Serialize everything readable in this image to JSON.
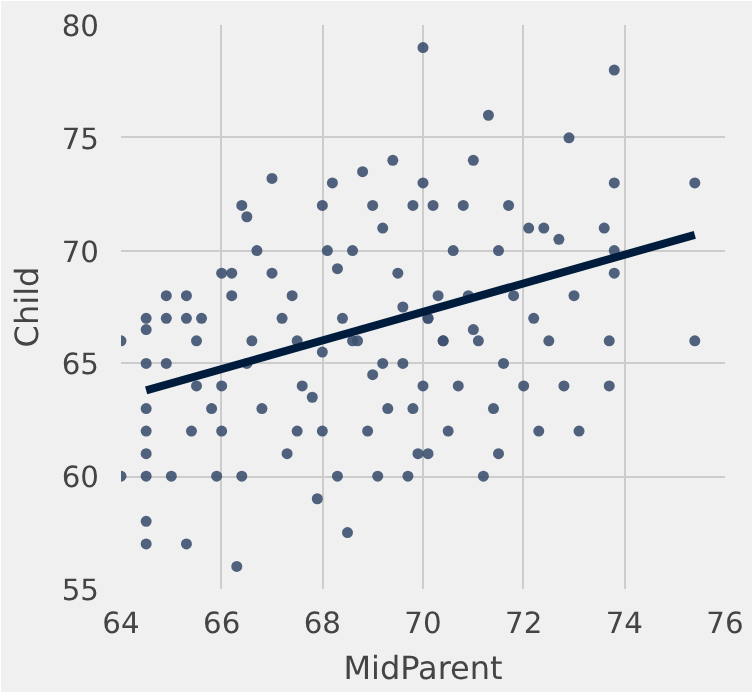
{
  "chart_data": {
    "type": "scatter",
    "xlabel": "MidParent",
    "ylabel": "Child",
    "xlim": [
      64,
      76
    ],
    "ylim": [
      55,
      80
    ],
    "xticks": [
      64,
      66,
      68,
      70,
      72,
      74,
      76
    ],
    "yticks": [
      55,
      60,
      65,
      70,
      75,
      80
    ],
    "grid": true,
    "series": [
      {
        "color": "#3d5170",
        "marker": "circle",
        "x": [
          64.0,
          64.0,
          64.5,
          64.5,
          64.5,
          64.5,
          64.5,
          64.5,
          64.5,
          64.5,
          64.5,
          64.9,
          64.9,
          64.9,
          65.0,
          65.3,
          65.3,
          65.3,
          65.4,
          65.5,
          65.5,
          65.6,
          65.8,
          65.9,
          66.0,
          66.0,
          66.0,
          66.2,
          66.3,
          66.4,
          66.4,
          66.5,
          66.6,
          66.7,
          66.8,
          67.0,
          67.2,
          67.3,
          67.4,
          67.5,
          67.6,
          67.8,
          67.9,
          68.0,
          68.0,
          68.1,
          68.2,
          68.3,
          68.4,
          68.5,
          68.6,
          68.7,
          68.8,
          68.9,
          69.0,
          69.1,
          69.2,
          69.3,
          69.4,
          69.5,
          69.6,
          69.7,
          69.8,
          69.9,
          70.0,
          70.0,
          70.1,
          70.1,
          70.2,
          70.3,
          70.4,
          70.5,
          70.6,
          70.7,
          70.8,
          70.9,
          71.0,
          71.1,
          71.2,
          71.3,
          71.4,
          71.5,
          71.6,
          71.7,
          71.8,
          72.0,
          72.1,
          72.2,
          72.3,
          72.4,
          72.5,
          72.7,
          72.8,
          72.9,
          73.0,
          73.1,
          73.6,
          73.7,
          73.7,
          73.8,
          73.8,
          73.8,
          73.8,
          75.4,
          75.4,
          66.2,
          67.0,
          68.3,
          69.2,
          69.6,
          70.1,
          70.4,
          71.0,
          68.0,
          69.0,
          70.0,
          66.5,
          67.5,
          71.5,
          69.8,
          68.6
        ],
        "values": [
          66.0,
          60.0,
          67.0,
          66.5,
          65.0,
          63.0,
          62.0,
          61.0,
          60.0,
          58.0,
          57.0,
          68.0,
          67.0,
          65.0,
          60.0,
          68.0,
          67.0,
          57.0,
          62.0,
          66.0,
          64.0,
          67.0,
          63.0,
          60.0,
          69.0,
          64.0,
          62.0,
          68.0,
          56.0,
          72.0,
          60.0,
          71.5,
          66.0,
          70.0,
          63.0,
          69.0,
          67.0,
          61.0,
          68.0,
          66.0,
          64.0,
          63.5,
          59.0,
          72.0,
          62.0,
          70.0,
          73.0,
          60.0,
          67.0,
          57.5,
          70.0,
          66.0,
          73.5,
          62.0,
          72.0,
          60.0,
          71.0,
          63.0,
          74.0,
          69.0,
          65.0,
          60.0,
          72.0,
          61.0,
          79.0,
          73.0,
          67.0,
          61.0,
          72.0,
          68.0,
          66.0,
          62.0,
          70.0,
          64.0,
          72.0,
          68.0,
          74.0,
          66.0,
          60.0,
          76.0,
          63.0,
          70.0,
          65.0,
          72.0,
          68.0,
          64.0,
          71.0,
          67.0,
          62.0,
          71.0,
          66.0,
          70.5,
          64.0,
          75.0,
          68.0,
          62.0,
          71.0,
          66.0,
          64.0,
          78.0,
          73.0,
          69.0,
          70.0,
          66.0,
          73.0,
          69.0,
          73.2,
          69.2,
          65.0,
          67.5,
          67.0,
          66.0,
          66.5,
          65.5,
          64.5,
          64.0,
          65.0,
          62.0,
          61.0,
          63.0,
          66.0
        ]
      },
      {
        "type": "line",
        "color": "#001c3d",
        "marker": "none",
        "x": [
          64.5,
          75.4
        ],
        "values": [
          63.8,
          70.7
        ]
      }
    ]
  }
}
